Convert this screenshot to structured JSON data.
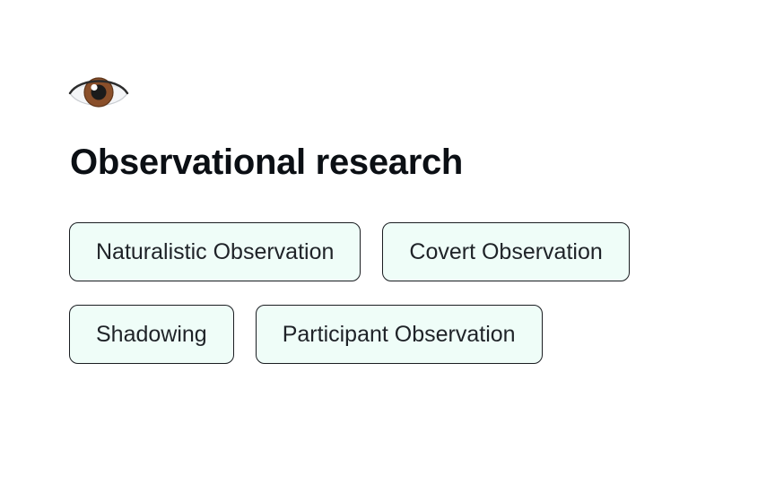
{
  "card": {
    "icon": "eye-icon",
    "title": "Observational research",
    "chips": [
      {
        "label": "Naturalistic Observation"
      },
      {
        "label": "Covert Observation"
      },
      {
        "label": "Shadowing"
      },
      {
        "label": "Participant Observation"
      }
    ]
  },
  "colors": {
    "title": "#0b0f14",
    "chip_background": "#effdf8",
    "chip_border": "#1a1d21",
    "chip_text": "#1f2328",
    "iris": "#8a4f2a"
  }
}
